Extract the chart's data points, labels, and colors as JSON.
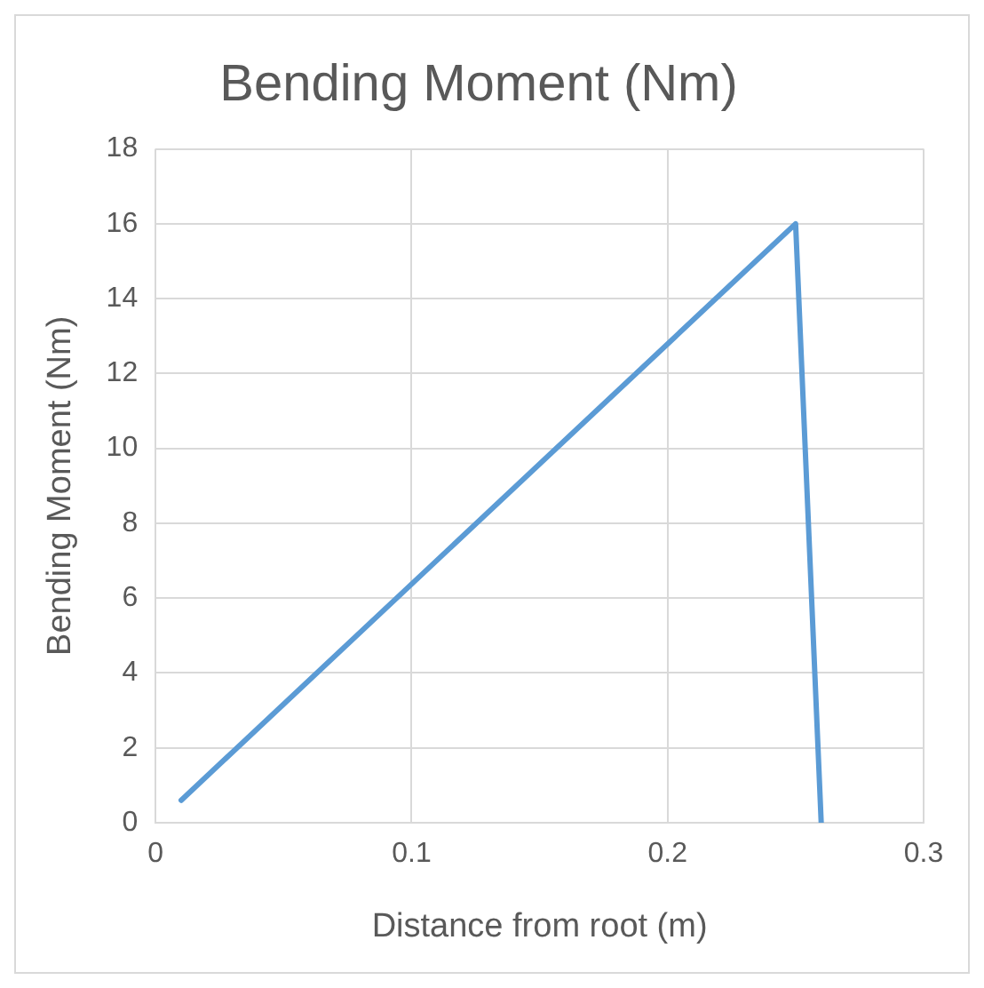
{
  "chart_data": {
    "type": "line",
    "title": "Bending Moment (Nm)",
    "xlabel": "Distance from root (m)",
    "ylabel": "Bending Moment (Nm)",
    "x": [
      0.01,
      0.25,
      0.26
    ],
    "series": [
      {
        "color": "#5b9bd5",
        "values": [
          0.6,
          16,
          0
        ]
      }
    ],
    "xlim": [
      0,
      0.3
    ],
    "xticks": [
      0,
      0.1,
      0.2,
      0.3
    ],
    "ylim": [
      0,
      18
    ],
    "yticks": [
      0,
      2,
      4,
      6,
      8,
      10,
      12,
      14,
      16,
      18
    ],
    "grid": true,
    "legend": false,
    "marker": "none",
    "line_style": "solid"
  }
}
